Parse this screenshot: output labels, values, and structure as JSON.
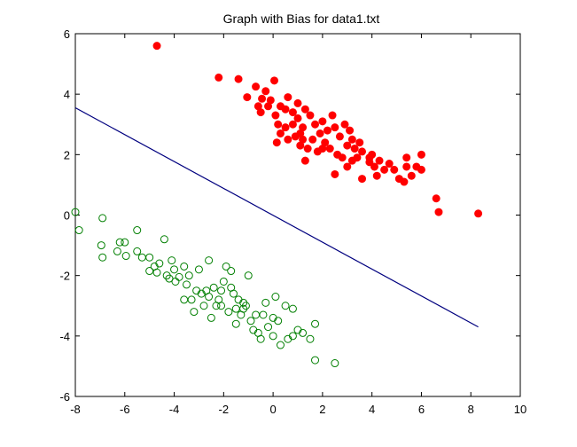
{
  "chart_data": {
    "type": "scatter",
    "title": "Graph with Bias for data1.txt",
    "xlabel": "",
    "ylabel": "",
    "xlim": [
      -8,
      10
    ],
    "ylim": [
      -6,
      6
    ],
    "xticks": [
      -8,
      -6,
      -4,
      -2,
      0,
      2,
      4,
      6,
      8,
      10
    ],
    "yticks": [
      -6,
      -4,
      -2,
      0,
      2,
      4,
      6
    ],
    "xtick_labels": [
      "-8",
      "-6",
      "-4",
      "-2",
      "0",
      "2",
      "4",
      "6",
      "8",
      "10"
    ],
    "ytick_labels": [
      "-6",
      "-4",
      "-2",
      "0",
      "2",
      "4",
      "6"
    ],
    "grid": false,
    "series": [
      {
        "marker": "filled-circle",
        "color": "#ff0000",
        "points": [
          [
            -4.7,
            5.6
          ],
          [
            -2.2,
            4.55
          ],
          [
            -1.4,
            4.5
          ],
          [
            -1.05,
            3.9
          ],
          [
            -0.7,
            4.25
          ],
          [
            -0.6,
            3.6
          ],
          [
            -0.45,
            3.85
          ],
          [
            -0.3,
            4.1
          ],
          [
            -0.1,
            3.8
          ],
          [
            0.05,
            4.45
          ],
          [
            -0.2,
            3.6
          ],
          [
            -0.5,
            3.4
          ],
          [
            0.1,
            3.3
          ],
          [
            0.3,
            3.6
          ],
          [
            0.5,
            3.5
          ],
          [
            0.6,
            3.9
          ],
          [
            0.8,
            3.4
          ],
          [
            0.2,
            3.0
          ],
          [
            0.5,
            2.9
          ],
          [
            0.8,
            3.0
          ],
          [
            1.0,
            3.2
          ],
          [
            1.1,
            2.7
          ],
          [
            1.3,
            3.5
          ],
          [
            1.5,
            3.3
          ],
          [
            0.3,
            2.7
          ],
          [
            0.6,
            2.5
          ],
          [
            0.15,
            2.4
          ],
          [
            0.9,
            2.6
          ],
          [
            1.2,
            2.5
          ],
          [
            1.4,
            2.2
          ],
          [
            1.2,
            2.9
          ],
          [
            1.7,
            3.0
          ],
          [
            1.9,
            2.7
          ],
          [
            2.0,
            3.1
          ],
          [
            2.2,
            2.8
          ],
          [
            1.6,
            2.5
          ],
          [
            1.8,
            2.1
          ],
          [
            1.1,
            2.3
          ],
          [
            1.3,
            1.8
          ],
          [
            2.1,
            2.4
          ],
          [
            2.4,
            3.3
          ],
          [
            2.5,
            2.9
          ],
          [
            2.7,
            2.6
          ],
          [
            2.9,
            3.0
          ],
          [
            3.1,
            2.8
          ],
          [
            2.3,
            2.2
          ],
          [
            2.6,
            2.0
          ],
          [
            2.8,
            1.9
          ],
          [
            3.0,
            2.3
          ],
          [
            3.2,
            2.5
          ],
          [
            3.3,
            2.2
          ],
          [
            3.4,
            1.9
          ],
          [
            3.5,
            2.4
          ],
          [
            3.6,
            2.1
          ],
          [
            3.0,
            1.6
          ],
          [
            3.2,
            1.8
          ],
          [
            2.5,
            1.35
          ],
          [
            3.6,
            1.2
          ],
          [
            3.9,
            1.9
          ],
          [
            4.1,
            1.6
          ],
          [
            4.3,
            1.8
          ],
          [
            4.5,
            1.5
          ],
          [
            4.7,
            1.7
          ],
          [
            4.2,
            1.3
          ],
          [
            4.9,
            1.5
          ],
          [
            5.1,
            1.2
          ],
          [
            5.4,
            1.6
          ],
          [
            5.6,
            1.3
          ],
          [
            5.8,
            1.6
          ],
          [
            6.0,
            1.5
          ],
          [
            6.0,
            2.0
          ],
          [
            5.3,
            1.1
          ],
          [
            4.0,
            2.0
          ],
          [
            5.4,
            1.9
          ],
          [
            6.6,
            0.55
          ],
          [
            6.7,
            0.1
          ],
          [
            8.3,
            0.05
          ],
          [
            3.9,
            1.75
          ],
          [
            2.0,
            2.2
          ],
          [
            1.0,
            3.7
          ]
        ]
      },
      {
        "marker": "open-circle",
        "color": "#007f00",
        "points": [
          [
            -8.0,
            0.1
          ],
          [
            -7.85,
            -0.5
          ],
          [
            -6.9,
            -0.1
          ],
          [
            -6.95,
            -1.0
          ],
          [
            -6.9,
            -1.4
          ],
          [
            -6.3,
            -1.2
          ],
          [
            -6.2,
            -0.9
          ],
          [
            -6.0,
            -0.9
          ],
          [
            -5.95,
            -1.35
          ],
          [
            -5.5,
            -0.5
          ],
          [
            -5.5,
            -1.2
          ],
          [
            -5.3,
            -1.4
          ],
          [
            -5.0,
            -1.4
          ],
          [
            -4.8,
            -1.7
          ],
          [
            -4.7,
            -1.9
          ],
          [
            -4.6,
            -1.6
          ],
          [
            -4.4,
            -0.8
          ],
          [
            -4.3,
            -2.0
          ],
          [
            -4.1,
            -1.5
          ],
          [
            -4.0,
            -1.8
          ],
          [
            -3.95,
            -2.2
          ],
          [
            -3.8,
            -2.05
          ],
          [
            -3.6,
            -1.7
          ],
          [
            -3.5,
            -2.3
          ],
          [
            -3.4,
            -2.0
          ],
          [
            -3.3,
            -2.8
          ],
          [
            -3.2,
            -3.2
          ],
          [
            -3.0,
            -1.8
          ],
          [
            -2.9,
            -2.6
          ],
          [
            -2.8,
            -3.0
          ],
          [
            -2.7,
            -2.5
          ],
          [
            -2.6,
            -1.5
          ],
          [
            -2.5,
            -3.4
          ],
          [
            -2.4,
            -2.4
          ],
          [
            -2.2,
            -2.8
          ],
          [
            -2.1,
            -3.0
          ],
          [
            -2.0,
            -2.2
          ],
          [
            -1.9,
            -1.7
          ],
          [
            -1.8,
            -3.2
          ],
          [
            -1.7,
            -1.85
          ],
          [
            -1.6,
            -2.6
          ],
          [
            -1.5,
            -3.1
          ],
          [
            -1.4,
            -2.8
          ],
          [
            -1.3,
            -3.3
          ],
          [
            -1.2,
            -2.9
          ],
          [
            -1.1,
            -3.0
          ],
          [
            -1.0,
            -2.0
          ],
          [
            -0.9,
            -3.5
          ],
          [
            -0.8,
            -3.8
          ],
          [
            -0.7,
            -3.3
          ],
          [
            -0.6,
            -3.9
          ],
          [
            -0.5,
            -4.1
          ],
          [
            -0.3,
            -2.9
          ],
          [
            -0.2,
            -3.7
          ],
          [
            0.0,
            -4.0
          ],
          [
            0.1,
            -2.7
          ],
          [
            0.2,
            -3.5
          ],
          [
            0.3,
            -4.3
          ],
          [
            0.5,
            -3.0
          ],
          [
            0.6,
            -4.1
          ],
          [
            0.8,
            -3.1
          ],
          [
            1.0,
            -3.8
          ],
          [
            1.2,
            -3.9
          ],
          [
            1.5,
            -4.1
          ],
          [
            1.7,
            -3.6
          ],
          [
            1.7,
            -4.8
          ],
          [
            2.5,
            -4.9
          ],
          [
            -1.5,
            -3.6
          ],
          [
            -2.3,
            -3.0
          ],
          [
            -3.1,
            -2.5
          ],
          [
            -4.2,
            -2.1
          ],
          [
            -5.0,
            -1.85
          ],
          [
            -0.4,
            -3.3
          ],
          [
            -1.7,
            -2.4
          ],
          [
            -2.6,
            -2.7
          ],
          [
            0.0,
            -3.4
          ],
          [
            -3.6,
            -2.8
          ],
          [
            -1.2,
            -3.1
          ],
          [
            0.8,
            -4.0
          ],
          [
            -2.1,
            -2.5
          ]
        ]
      }
    ],
    "decision_line": {
      "color": "#00007f",
      "x": [
        -8.0,
        8.3
      ],
      "y": [
        3.55,
        -3.7
      ]
    }
  }
}
